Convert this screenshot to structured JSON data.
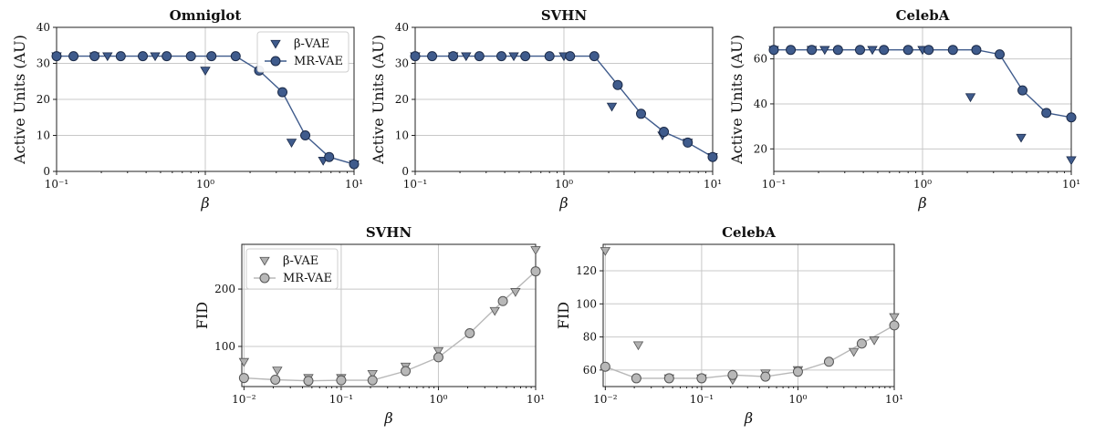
{
  "colors": {
    "mr_top": "#3f5b8c",
    "mr_top_edge": "#1b2a48",
    "beta_top": "#3f5b8c",
    "mr_bottom": "#b8b8b8",
    "beta_bottom": "#b0b0b0",
    "grid": "#c8c8c8"
  },
  "chart_data": [
    {
      "type": "line",
      "title": "Omniglot",
      "xlabel": "β",
      "ylabel": "Active Units (AU)",
      "xscale": "log",
      "xlim": [
        0.1,
        10
      ],
      "ylim": [
        0,
        40
      ],
      "yticks": [
        0,
        10,
        20,
        30,
        40
      ],
      "xticks": [
        0.1,
        1,
        10
      ],
      "xtick_labels": [
        "10⁻¹",
        "10⁰",
        "10¹"
      ],
      "grid": true,
      "legend": "top-right",
      "series": [
        {
          "name": "β-VAE",
          "marker": "triangle-down",
          "x": [
            0.1,
            0.18,
            0.22,
            0.46,
            1,
            3.8,
            6.2,
            10
          ],
          "y": [
            32,
            32,
            32,
            32,
            28,
            8,
            3,
            2
          ]
        },
        {
          "name": "MR-VAE",
          "marker": "circle",
          "x": [
            0.1,
            0.13,
            0.18,
            0.27,
            0.38,
            0.55,
            0.8,
            1.1,
            1.6,
            2.3,
            3.3,
            4.7,
            6.8,
            10
          ],
          "y": [
            32,
            32,
            32,
            32,
            32,
            32,
            32,
            32,
            32,
            28,
            22,
            10,
            4,
            2
          ]
        }
      ]
    },
    {
      "type": "line",
      "title": "SVHN",
      "xlabel": "β",
      "ylabel": "Active Units (AU)",
      "xscale": "log",
      "xlim": [
        0.1,
        10
      ],
      "ylim": [
        0,
        40
      ],
      "yticks": [
        0,
        10,
        20,
        30,
        40
      ],
      "xticks": [
        0.1,
        1,
        10
      ],
      "xtick_labels": [
        "10⁻¹",
        "10⁰",
        "10¹"
      ],
      "grid": true,
      "legend": "none",
      "series": [
        {
          "name": "β-VAE",
          "marker": "triangle-down",
          "x": [
            0.1,
            0.18,
            0.22,
            0.46,
            1,
            2.1,
            4.6,
            6.8,
            10
          ],
          "y": [
            32,
            32,
            32,
            32,
            32,
            18,
            10,
            8,
            4
          ]
        },
        {
          "name": "MR-VAE",
          "marker": "circle",
          "x": [
            0.1,
            0.13,
            0.18,
            0.27,
            0.38,
            0.55,
            0.8,
            1.1,
            1.6,
            2.3,
            3.3,
            4.7,
            6.8,
            10
          ],
          "y": [
            32,
            32,
            32,
            32,
            32,
            32,
            32,
            32,
            32,
            24,
            16,
            11,
            8,
            4
          ]
        }
      ]
    },
    {
      "type": "line",
      "title": "CelebA",
      "xlabel": "β",
      "ylabel": "Active Units (AU)",
      "xscale": "log",
      "xlim": [
        0.1,
        10
      ],
      "ylim": [
        10,
        74
      ],
      "yticks": [
        20,
        40,
        60
      ],
      "xticks": [
        0.1,
        1,
        10
      ],
      "xtick_labels": [
        "10⁻¹",
        "10⁰",
        "10¹"
      ],
      "grid": true,
      "legend": "none",
      "series": [
        {
          "name": "β-VAE",
          "marker": "triangle-down",
          "x": [
            0.1,
            0.18,
            0.22,
            0.46,
            1,
            2.1,
            4.6,
            10
          ],
          "y": [
            64,
            64,
            64,
            64,
            64,
            43,
            25,
            15
          ]
        },
        {
          "name": "MR-VAE",
          "marker": "circle",
          "x": [
            0.1,
            0.13,
            0.18,
            0.27,
            0.38,
            0.55,
            0.8,
            1.1,
            1.6,
            2.3,
            3.3,
            4.7,
            6.8,
            10
          ],
          "y": [
            64,
            64,
            64,
            64,
            64,
            64,
            64,
            64,
            64,
            64,
            62,
            46,
            36,
            34
          ]
        }
      ]
    },
    {
      "type": "line",
      "title": "SVHN",
      "xlabel": "β",
      "ylabel": "FID",
      "xscale": "log",
      "xlim": [
        0.0095,
        10
      ],
      "ylim": [
        30,
        278
      ],
      "yticks": [
        100,
        200
      ],
      "xticks": [
        0.01,
        0.1,
        1,
        10
      ],
      "xtick_labels": [
        "10⁻²",
        "10⁻¹",
        "10⁰",
        "10¹"
      ],
      "grid": true,
      "legend": "top-left",
      "series": [
        {
          "name": "β-VAE",
          "marker": "triangle-down",
          "x": [
            0.01,
            0.022,
            0.046,
            0.1,
            0.21,
            0.46,
            1,
            3.8,
            6.2,
            10
          ],
          "y": [
            73,
            58,
            45,
            45,
            52,
            65,
            92,
            162,
            195,
            268
          ]
        },
        {
          "name": "MR-VAE",
          "marker": "circle",
          "x": [
            0.01,
            0.021,
            0.046,
            0.1,
            0.21,
            0.46,
            1,
            2.1,
            4.6,
            10
          ],
          "y": [
            45,
            42,
            40,
            41,
            41,
            57,
            81,
            123,
            179,
            231
          ]
        }
      ]
    },
    {
      "type": "line",
      "title": "CelebA",
      "xlabel": "β",
      "ylabel": "FID",
      "xscale": "log",
      "xlim": [
        0.0095,
        10
      ],
      "ylim": [
        50,
        136
      ],
      "yticks": [
        60,
        80,
        100,
        120
      ],
      "xticks": [
        0.01,
        0.1,
        1,
        10
      ],
      "xtick_labels": [
        "10⁻²",
        "10⁻¹",
        "10⁰",
        "10¹"
      ],
      "grid": true,
      "legend": "none",
      "series": [
        {
          "name": "β-VAE",
          "marker": "triangle-down",
          "x": [
            0.01,
            0.022,
            0.046,
            0.1,
            0.21,
            0.46,
            1,
            3.8,
            6.2,
            10
          ],
          "y": [
            132,
            75,
            55,
            55,
            54,
            58,
            60,
            71,
            78,
            92
          ]
        },
        {
          "name": "MR-VAE",
          "marker": "circle",
          "x": [
            0.01,
            0.021,
            0.046,
            0.1,
            0.21,
            0.46,
            1,
            2.1,
            4.6,
            10
          ],
          "y": [
            62,
            55,
            55,
            55,
            57,
            56,
            59,
            65,
            76,
            87
          ]
        }
      ]
    }
  ]
}
